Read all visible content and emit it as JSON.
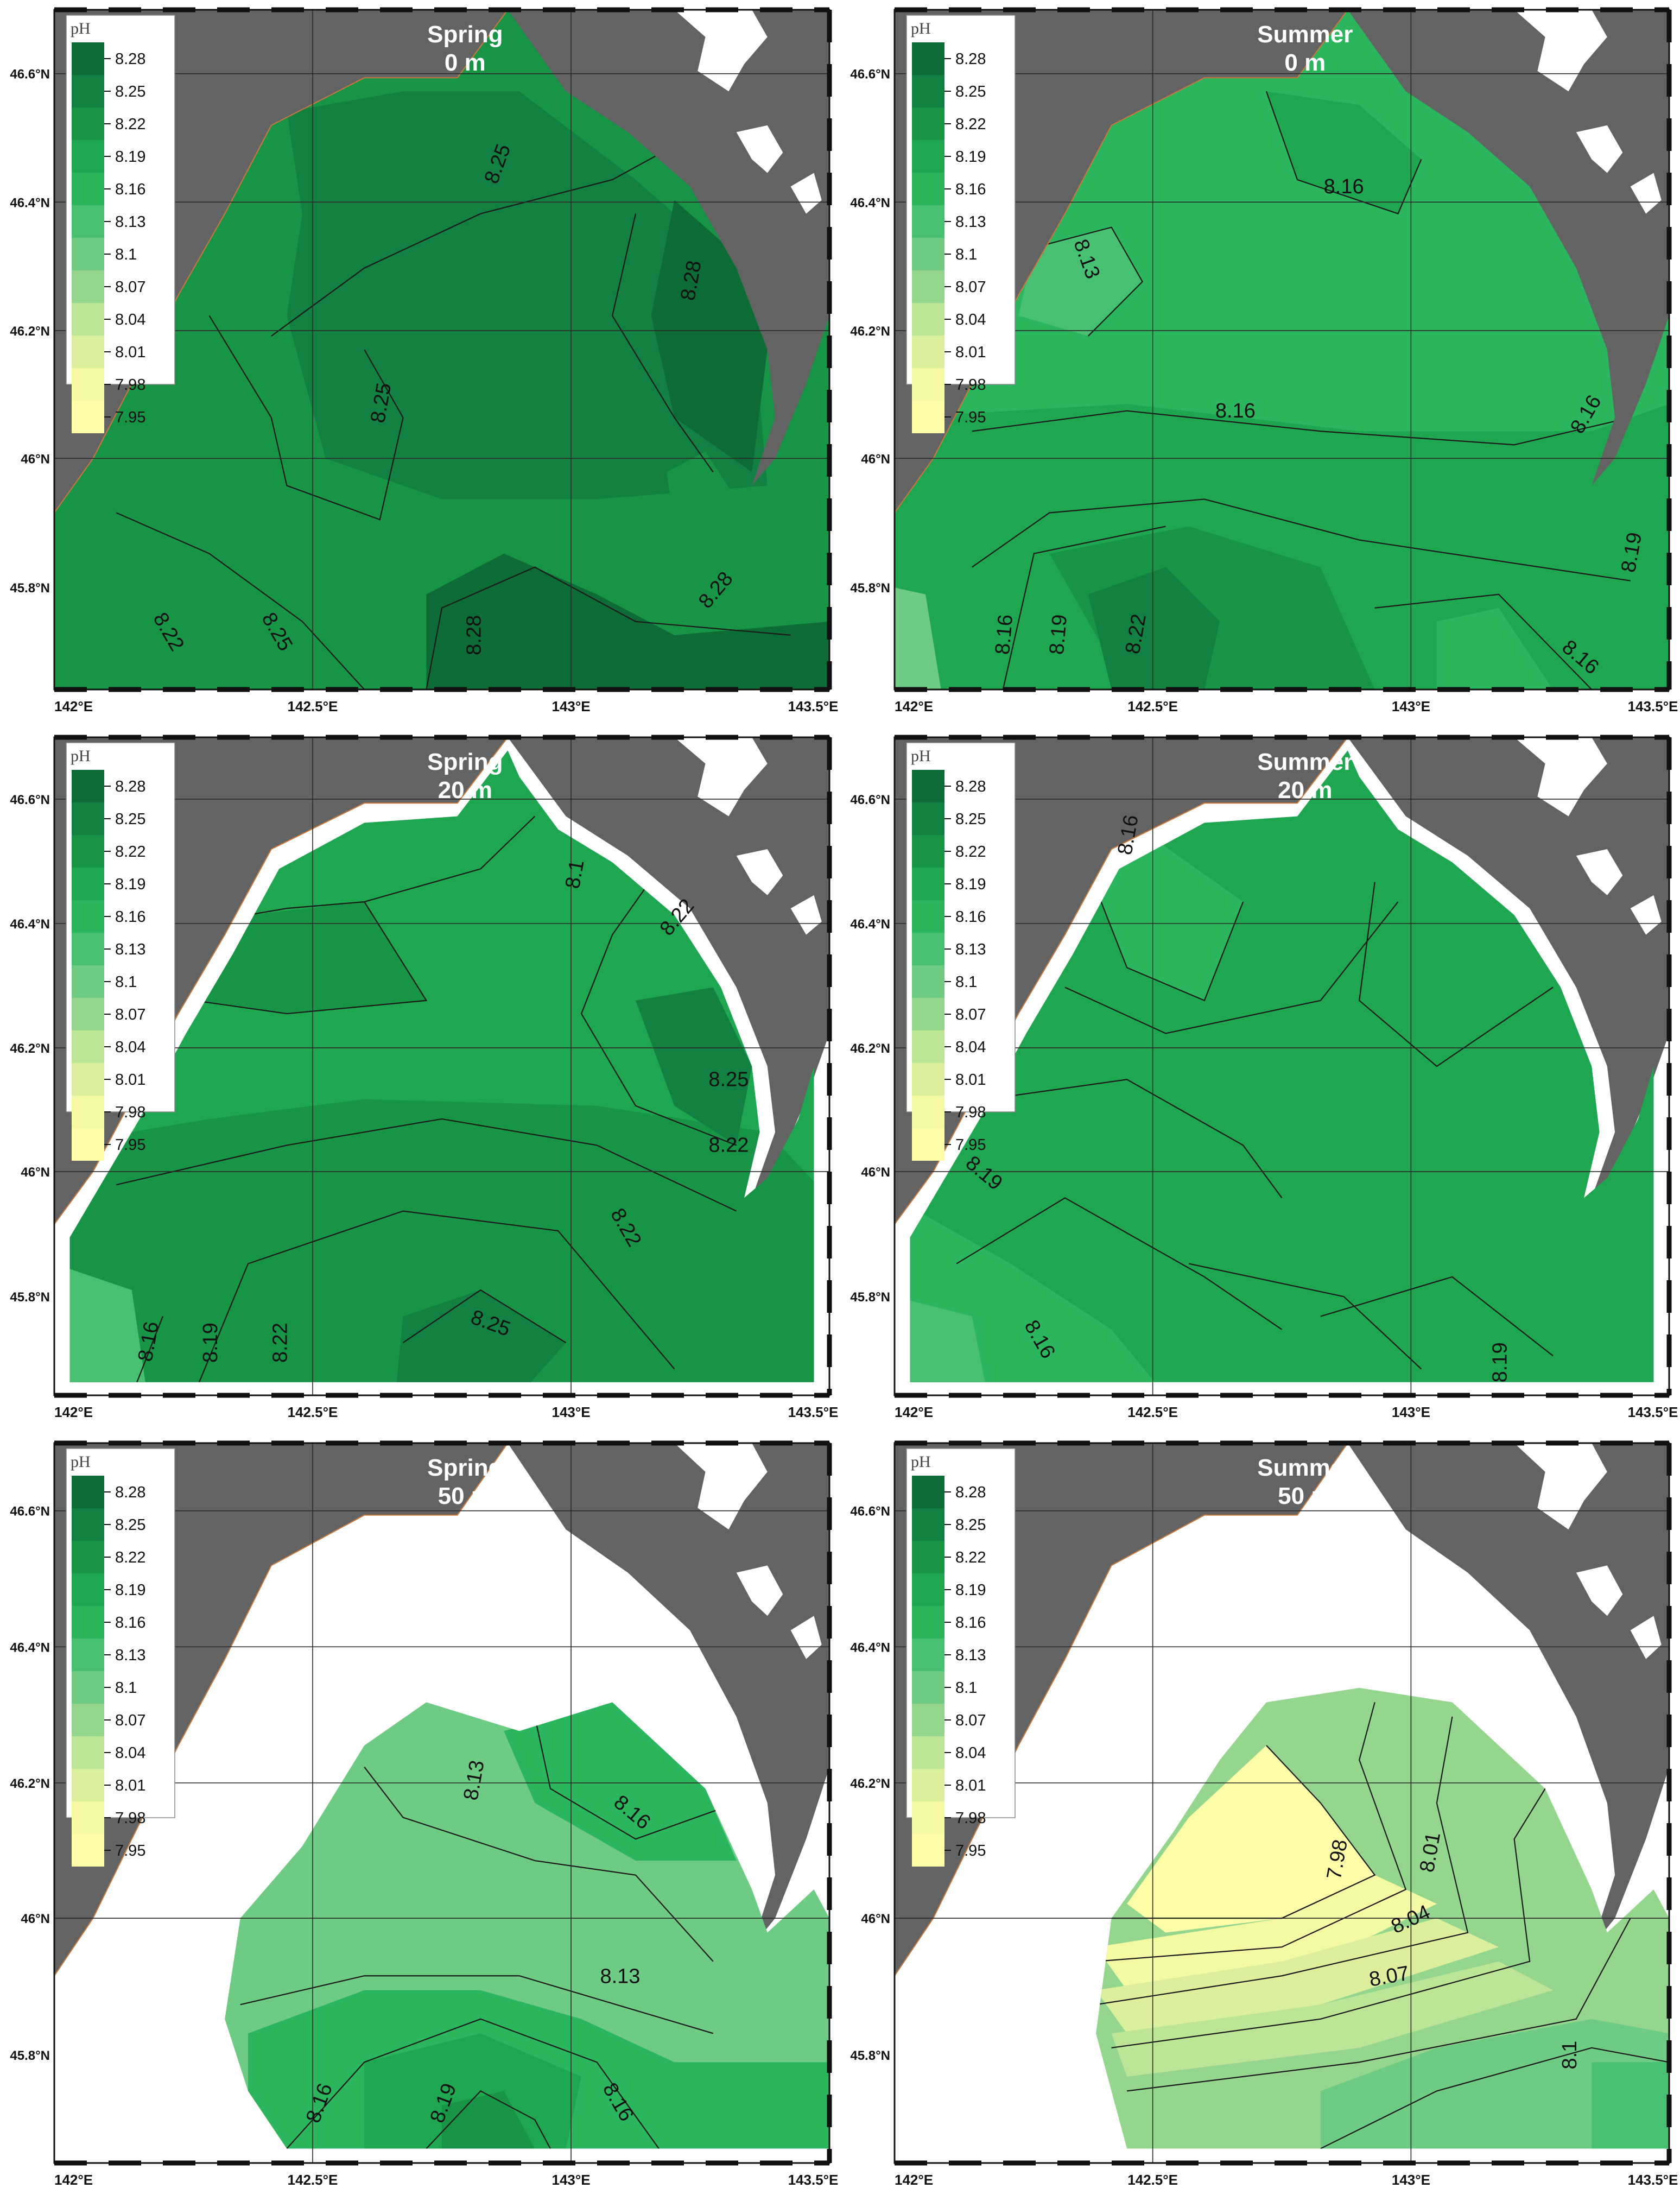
{
  "colors": {
    "land": "#636363",
    "coast_outline": "#c8783a",
    "no_data": "#ffffff",
    "contour": "#1a1a1a",
    "graticule": "#2a2a2a"
  },
  "legend": {
    "title": "pH",
    "title_spring_50": "pH",
    "levels": [
      "8.28",
      "8.25",
      "8.22",
      "8.19",
      "8.16",
      "8.13",
      "8.1",
      "8.07",
      "8.04",
      "8.01",
      "7.98",
      "7.95"
    ],
    "colors": [
      "#0d6b36",
      "#128040",
      "#189447",
      "#1ea651",
      "#2bb65e",
      "#47c072",
      "#6dcb84",
      "#95d68e",
      "#bde596",
      "#dbef9c",
      "#f4f9a4",
      "#fffea8"
    ]
  },
  "axes": {
    "lon_ticks": [
      "142°E",
      "142.5°E",
      "143°E",
      "143.5°E"
    ],
    "lat_ticks": [
      "46.6°N",
      "46.4°N",
      "46.2°N",
      "46°N",
      "45.8°N"
    ]
  },
  "panels": [
    {
      "id": "spring-0",
      "season": "Spring",
      "depth": "0 m",
      "contour_labels": [
        "8.25",
        "8.28",
        "8.25",
        "8.22",
        "8.25",
        "8.28",
        "8.28"
      ]
    },
    {
      "id": "summer-0",
      "season": "Summer",
      "depth": "0 m",
      "contour_labels": [
        "8.16",
        "8.13",
        "8.16",
        "8.16",
        "8.19",
        "8.16",
        "8.19",
        "8.22",
        "8.16"
      ]
    },
    {
      "id": "spring-20",
      "season": "Spring",
      "depth": "20 m",
      "contour_labels": [
        "8.1",
        "8.22",
        "8.25",
        "8.22",
        "8.22",
        "8.16",
        "8.19",
        "8.22",
        "8.25"
      ]
    },
    {
      "id": "summer-20",
      "season": "Summer",
      "depth": "20 m",
      "contour_labels": [
        "8.16",
        "8.19",
        "8.16",
        "8.19"
      ]
    },
    {
      "id": "spring-50",
      "season": "Spring",
      "depth": "50 m",
      "contour_labels": [
        "8.13",
        "8.16",
        "8.13",
        "8.16",
        "8.19",
        "8.16"
      ]
    },
    {
      "id": "summer-50",
      "season": "Summer",
      "depth": "50 m",
      "contour_labels": [
        "7.98",
        "8.01",
        "8.04",
        "8.07",
        "8.1"
      ]
    }
  ]
}
